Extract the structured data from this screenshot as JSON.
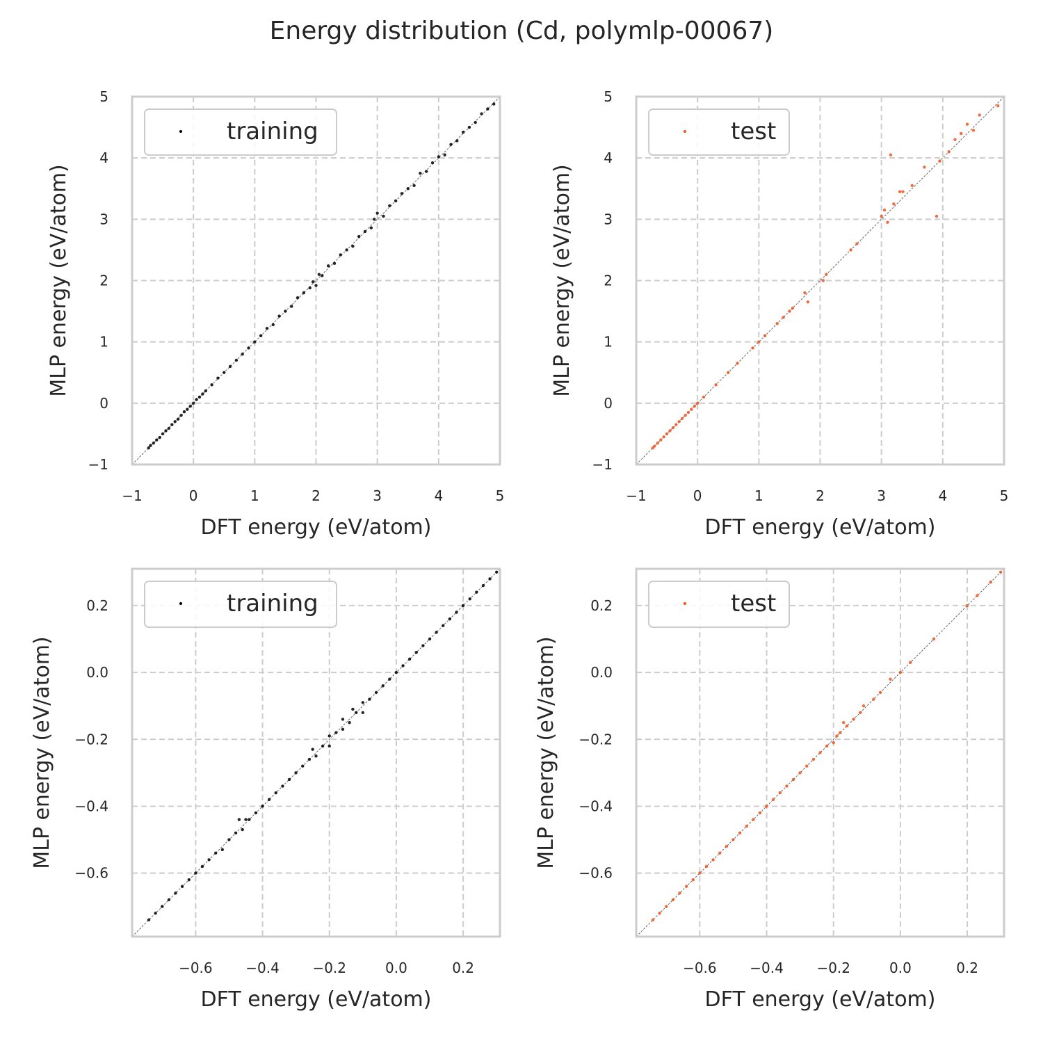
{
  "title": "Energy distribution (Cd, polymlp-00067)",
  "colors": {
    "training": "#000000",
    "test": "#f0531e",
    "grid": "#cccccc",
    "spine": "#cccccc",
    "diagonal": "#666666"
  },
  "chart_data": [
    {
      "type": "scatter",
      "xlabel": "DFT energy (eV/atom)",
      "ylabel": "MLP energy (eV/atom)",
      "xlim": [
        -1,
        5
      ],
      "ylim": [
        -1,
        5
      ],
      "xticks": [
        -1,
        0,
        1,
        2,
        3,
        4,
        5
      ],
      "yticks": [
        -1,
        0,
        1,
        2,
        3,
        4,
        5
      ],
      "tick_labels_x": [
        "−1",
        "0",
        "1",
        "2",
        "3",
        "4",
        "5"
      ],
      "tick_labels_y": [
        "−1",
        "0",
        "1",
        "2",
        "3",
        "4",
        "5"
      ],
      "grid": true,
      "legend": "top-left",
      "series": [
        {
          "name": "training",
          "color": "#000000",
          "points": [
            [
              -0.73,
              -0.73
            ],
            [
              -0.7,
              -0.69
            ],
            [
              -0.65,
              -0.65
            ],
            [
              -0.6,
              -0.6
            ],
            [
              -0.55,
              -0.56
            ],
            [
              -0.5,
              -0.5
            ],
            [
              -0.45,
              -0.45
            ],
            [
              -0.4,
              -0.41
            ],
            [
              -0.35,
              -0.35
            ],
            [
              -0.3,
              -0.3
            ],
            [
              -0.25,
              -0.26
            ],
            [
              -0.2,
              -0.2
            ],
            [
              -0.15,
              -0.14
            ],
            [
              -0.1,
              -0.1
            ],
            [
              -0.05,
              -0.05
            ],
            [
              0.0,
              0.0
            ],
            [
              0.05,
              0.06
            ],
            [
              0.1,
              0.1
            ],
            [
              0.15,
              0.15
            ],
            [
              0.2,
              0.2
            ],
            [
              0.3,
              0.3
            ],
            [
              0.4,
              0.41
            ],
            [
              0.5,
              0.5
            ],
            [
              0.6,
              0.6
            ],
            [
              0.7,
              0.7
            ],
            [
              0.8,
              0.8
            ],
            [
              0.9,
              0.9
            ],
            [
              1.0,
              1.0
            ],
            [
              1.1,
              1.1
            ],
            [
              1.2,
              1.22
            ],
            [
              1.3,
              1.28
            ],
            [
              1.4,
              1.42
            ],
            [
              1.5,
              1.5
            ],
            [
              1.6,
              1.58
            ],
            [
              1.7,
              1.72
            ],
            [
              1.8,
              1.8
            ],
            [
              1.9,
              1.88
            ],
            [
              1.95,
              1.98
            ],
            [
              2.0,
              1.92
            ],
            [
              2.05,
              2.1
            ],
            [
              2.1,
              2.08
            ],
            [
              2.2,
              2.24
            ],
            [
              2.3,
              2.28
            ],
            [
              2.4,
              2.42
            ],
            [
              2.5,
              2.5
            ],
            [
              2.6,
              2.56
            ],
            [
              2.7,
              2.72
            ],
            [
              2.8,
              2.8
            ],
            [
              2.9,
              2.86
            ],
            [
              2.95,
              3.0
            ],
            [
              3.0,
              3.1
            ],
            [
              3.1,
              3.05
            ],
            [
              3.2,
              3.22
            ],
            [
              3.3,
              3.3
            ],
            [
              3.4,
              3.42
            ],
            [
              3.5,
              3.5
            ],
            [
              3.6,
              3.55
            ],
            [
              3.7,
              3.75
            ],
            [
              3.8,
              3.78
            ],
            [
              3.9,
              3.92
            ],
            [
              4.0,
              4.02
            ],
            [
              4.1,
              4.05
            ],
            [
              4.2,
              4.22
            ],
            [
              4.3,
              4.28
            ],
            [
              4.4,
              4.42
            ],
            [
              4.5,
              4.5
            ],
            [
              4.6,
              4.58
            ],
            [
              4.7,
              4.72
            ],
            [
              4.8,
              4.8
            ],
            [
              4.9,
              4.88
            ]
          ]
        }
      ]
    },
    {
      "type": "scatter",
      "xlabel": "DFT energy (eV/atom)",
      "ylabel": "MLP energy (eV/atom)",
      "xlim": [
        -1,
        5
      ],
      "ylim": [
        -1,
        5
      ],
      "xticks": [
        -1,
        0,
        1,
        2,
        3,
        4,
        5
      ],
      "yticks": [
        -1,
        0,
        1,
        2,
        3,
        4,
        5
      ],
      "tick_labels_x": [
        "−1",
        "0",
        "1",
        "2",
        "3",
        "4",
        "5"
      ],
      "tick_labels_y": [
        "−1",
        "0",
        "1",
        "2",
        "3",
        "4",
        "5"
      ],
      "grid": true,
      "legend": "top-left",
      "series": [
        {
          "name": "test",
          "color": "#f0531e",
          "points": [
            [
              -0.73,
              -0.73
            ],
            [
              -0.7,
              -0.7
            ],
            [
              -0.65,
              -0.65
            ],
            [
              -0.6,
              -0.6
            ],
            [
              -0.55,
              -0.55
            ],
            [
              -0.5,
              -0.5
            ],
            [
              -0.45,
              -0.45
            ],
            [
              -0.4,
              -0.4
            ],
            [
              -0.35,
              -0.35
            ],
            [
              -0.3,
              -0.3
            ],
            [
              -0.25,
              -0.25
            ],
            [
              -0.2,
              -0.2
            ],
            [
              -0.15,
              -0.15
            ],
            [
              -0.1,
              -0.1
            ],
            [
              -0.05,
              -0.05
            ],
            [
              0.0,
              0.0
            ],
            [
              0.1,
              0.1
            ],
            [
              0.3,
              0.3
            ],
            [
              0.5,
              0.5
            ],
            [
              0.65,
              0.65
            ],
            [
              0.9,
              0.9
            ],
            [
              1.0,
              1.0
            ],
            [
              1.1,
              1.1
            ],
            [
              1.3,
              1.3
            ],
            [
              1.4,
              1.4
            ],
            [
              1.5,
              1.5
            ],
            [
              1.55,
              1.55
            ],
            [
              1.75,
              1.8
            ],
            [
              1.8,
              1.65
            ],
            [
              2.05,
              2.0
            ],
            [
              2.1,
              2.1
            ],
            [
              2.5,
              2.5
            ],
            [
              2.6,
              2.6
            ],
            [
              3.0,
              3.05
            ],
            [
              3.05,
              3.15
            ],
            [
              3.1,
              2.95
            ],
            [
              3.15,
              4.05
            ],
            [
              3.2,
              3.25
            ],
            [
              3.3,
              3.45
            ],
            [
              3.35,
              3.45
            ],
            [
              3.5,
              3.55
            ],
            [
              3.7,
              3.85
            ],
            [
              3.9,
              3.05
            ],
            [
              3.95,
              3.95
            ],
            [
              4.1,
              4.1
            ],
            [
              4.2,
              4.3
            ],
            [
              4.3,
              4.4
            ],
            [
              4.4,
              4.55
            ],
            [
              4.5,
              4.45
            ],
            [
              4.6,
              4.7
            ],
            [
              4.9,
              4.85
            ]
          ]
        }
      ]
    },
    {
      "type": "scatter",
      "xlabel": "DFT energy (eV/atom)",
      "ylabel": "MLP energy (eV/atom)",
      "xlim": [
        -0.79,
        0.31
      ],
      "ylim": [
        -0.79,
        0.31
      ],
      "xticks": [
        -0.6,
        -0.4,
        -0.2,
        0.0,
        0.2
      ],
      "yticks": [
        -0.6,
        -0.4,
        -0.2,
        0.0,
        0.2
      ],
      "tick_labels_x": [
        "−0.6",
        "−0.4",
        "−0.2",
        "0.0",
        "0.2"
      ],
      "tick_labels_y": [
        "−0.6",
        "−0.4",
        "−0.2",
        "0.0",
        "0.2"
      ],
      "grid": true,
      "legend": "top-left",
      "series": [
        {
          "name": "training",
          "color": "#000000",
          "points": [
            [
              -0.74,
              -0.74
            ],
            [
              -0.72,
              -0.72
            ],
            [
              -0.7,
              -0.7
            ],
            [
              -0.68,
              -0.68
            ],
            [
              -0.66,
              -0.66
            ],
            [
              -0.64,
              -0.64
            ],
            [
              -0.62,
              -0.62
            ],
            [
              -0.6,
              -0.6
            ],
            [
              -0.58,
              -0.58
            ],
            [
              -0.56,
              -0.56
            ],
            [
              -0.54,
              -0.54
            ],
            [
              -0.52,
              -0.53
            ],
            [
              -0.5,
              -0.5
            ],
            [
              -0.48,
              -0.48
            ],
            [
              -0.47,
              -0.44
            ],
            [
              -0.46,
              -0.47
            ],
            [
              -0.45,
              -0.44
            ],
            [
              -0.44,
              -0.44
            ],
            [
              -0.42,
              -0.42
            ],
            [
              -0.4,
              -0.4
            ],
            [
              -0.38,
              -0.38
            ],
            [
              -0.36,
              -0.36
            ],
            [
              -0.34,
              -0.34
            ],
            [
              -0.32,
              -0.32
            ],
            [
              -0.3,
              -0.3
            ],
            [
              -0.28,
              -0.28
            ],
            [
              -0.26,
              -0.26
            ],
            [
              -0.25,
              -0.23
            ],
            [
              -0.24,
              -0.25
            ],
            [
              -0.22,
              -0.22
            ],
            [
              -0.2,
              -0.19
            ],
            [
              -0.2,
              -0.22
            ],
            [
              -0.18,
              -0.18
            ],
            [
              -0.16,
              -0.14
            ],
            [
              -0.16,
              -0.17
            ],
            [
              -0.14,
              -0.15
            ],
            [
              -0.13,
              -0.11
            ],
            [
              -0.12,
              -0.12
            ],
            [
              -0.1,
              -0.09
            ],
            [
              -0.1,
              -0.12
            ],
            [
              -0.08,
              -0.08
            ],
            [
              -0.06,
              -0.06
            ],
            [
              -0.04,
              -0.04
            ],
            [
              -0.02,
              -0.02
            ],
            [
              0.0,
              0.0
            ],
            [
              0.02,
              0.02
            ],
            [
              0.04,
              0.04
            ],
            [
              0.06,
              0.06
            ],
            [
              0.08,
              0.08
            ],
            [
              0.1,
              0.1
            ],
            [
              0.12,
              0.12
            ],
            [
              0.14,
              0.14
            ],
            [
              0.16,
              0.16
            ],
            [
              0.18,
              0.18
            ],
            [
              0.2,
              0.2
            ],
            [
              0.22,
              0.22
            ],
            [
              0.24,
              0.24
            ],
            [
              0.26,
              0.26
            ],
            [
              0.28,
              0.28
            ],
            [
              0.3,
              0.3
            ]
          ]
        }
      ]
    },
    {
      "type": "scatter",
      "xlabel": "DFT energy (eV/atom)",
      "ylabel": "MLP energy (eV/atom)",
      "xlim": [
        -0.79,
        0.31
      ],
      "ylim": [
        -0.79,
        0.31
      ],
      "xticks": [
        -0.6,
        -0.4,
        -0.2,
        0.0,
        0.2
      ],
      "yticks": [
        -0.6,
        -0.4,
        -0.2,
        0.0,
        0.2
      ],
      "tick_labels_x": [
        "−0.6",
        "−0.4",
        "−0.2",
        "0.0",
        "0.2"
      ],
      "tick_labels_y": [
        "−0.6",
        "−0.4",
        "−0.2",
        "0.0",
        "0.2"
      ],
      "grid": true,
      "legend": "top-left",
      "series": [
        {
          "name": "test",
          "color": "#f0531e",
          "points": [
            [
              -0.74,
              -0.74
            ],
            [
              -0.72,
              -0.72
            ],
            [
              -0.7,
              -0.7
            ],
            [
              -0.68,
              -0.68
            ],
            [
              -0.66,
              -0.66
            ],
            [
              -0.64,
              -0.64
            ],
            [
              -0.62,
              -0.62
            ],
            [
              -0.6,
              -0.6
            ],
            [
              -0.58,
              -0.58
            ],
            [
              -0.56,
              -0.56
            ],
            [
              -0.54,
              -0.54
            ],
            [
              -0.52,
              -0.52
            ],
            [
              -0.5,
              -0.5
            ],
            [
              -0.48,
              -0.48
            ],
            [
              -0.46,
              -0.46
            ],
            [
              -0.44,
              -0.44
            ],
            [
              -0.42,
              -0.42
            ],
            [
              -0.4,
              -0.4
            ],
            [
              -0.38,
              -0.38
            ],
            [
              -0.36,
              -0.36
            ],
            [
              -0.34,
              -0.34
            ],
            [
              -0.32,
              -0.32
            ],
            [
              -0.3,
              -0.3
            ],
            [
              -0.28,
              -0.28
            ],
            [
              -0.26,
              -0.26
            ],
            [
              -0.24,
              -0.24
            ],
            [
              -0.22,
              -0.22
            ],
            [
              -0.2,
              -0.21
            ],
            [
              -0.19,
              -0.19
            ],
            [
              -0.18,
              -0.18
            ],
            [
              -0.17,
              -0.15
            ],
            [
              -0.16,
              -0.16
            ],
            [
              -0.14,
              -0.14
            ],
            [
              -0.12,
              -0.12
            ],
            [
              -0.11,
              -0.1
            ],
            [
              -0.08,
              -0.08
            ],
            [
              -0.06,
              -0.06
            ],
            [
              -0.03,
              -0.02
            ],
            [
              0.0,
              0.0
            ],
            [
              0.03,
              0.03
            ],
            [
              0.1,
              0.1
            ],
            [
              0.2,
              0.2
            ],
            [
              0.23,
              0.23
            ],
            [
              0.27,
              0.27
            ],
            [
              0.3,
              0.3
            ]
          ]
        }
      ]
    }
  ]
}
